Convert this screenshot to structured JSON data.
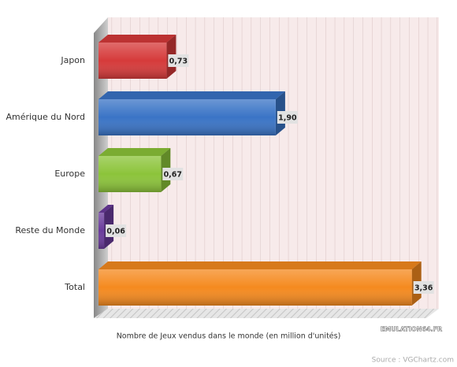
{
  "chart_data": {
    "type": "bar3d",
    "x_label": "Nombre de Jeux vendus dans le monde (en million d'unités)",
    "source": "Source : VGChartz.com",
    "watermark": "EMULATION64.FR",
    "categories": [
      "Japon",
      "Amérique du Nord",
      "Europe",
      "Reste du Monde",
      "Total"
    ],
    "values": [
      0.73,
      1.9,
      0.67,
      0.06,
      3.36
    ],
    "value_labels": [
      "0,73",
      "1,90",
      "0,67",
      "0,06",
      "3,36"
    ],
    "colors": [
      "#d63a3a",
      "#3a74c6",
      "#8cc43a",
      "#6a3b9c",
      "#f58a1f"
    ],
    "xlim": [
      0,
      3.65
    ]
  }
}
